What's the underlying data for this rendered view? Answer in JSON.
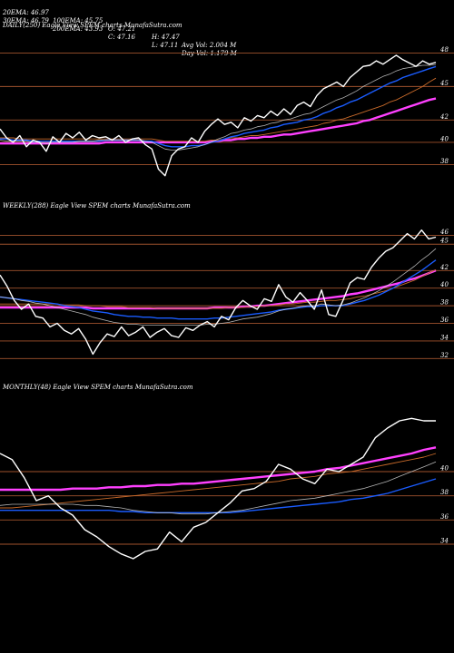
{
  "header": {
    "row1": [
      "20EMA: 46.97",
      "100EMA: 45.75",
      "O: 47.21",
      "H: 47.47",
      "Avg Vol: 2.004  M"
    ],
    "row2": [
      "30EMA: 46.79",
      "200EMA: 43.93",
      "C: 47.16",
      "L: 47.11",
      "Day Vol: 1.179 M"
    ]
  },
  "colors": {
    "background": "#000000",
    "price": "#ffffff",
    "ema_blue": "#1a5cff",
    "ema_magenta": "#ff40ff",
    "grid": "#a0522d"
  },
  "chart_data": [
    {
      "type": "line",
      "title": "DAILY(250) Eagle  View  SPEM charts MunafaSutra.com",
      "yticks": [
        "48",
        "45",
        "42",
        "40",
        "38"
      ],
      "ylim": [
        36.5,
        49.5
      ],
      "series": [
        {
          "role": "price",
          "values": [
            41.2,
            40.4,
            40.0,
            40.6,
            39.6,
            40.2,
            40.0,
            39.2,
            40.5,
            40.0,
            40.8,
            40.4,
            40.9,
            40.2,
            40.6,
            40.4,
            40.5,
            40.2,
            40.6,
            40.0,
            40.3,
            40.4,
            39.8,
            39.4,
            37.6,
            37.0,
            38.8,
            39.4,
            39.6,
            40.4,
            40.0,
            41.0,
            41.6,
            42.1,
            41.6,
            41.8,
            41.3,
            42.2,
            41.9,
            42.4,
            42.2,
            42.8,
            42.4,
            43.0,
            42.5,
            43.3,
            43.6,
            43.2,
            44.2,
            44.8,
            45.1,
            45.4,
            45.0,
            45.8,
            46.3,
            46.8,
            46.9,
            47.3,
            47.0,
            47.4,
            47.8,
            47.4,
            47.1,
            46.8,
            47.3,
            47.0,
            47.16
          ]
        },
        {
          "role": "ema20",
          "values": [
            40.2,
            40.1,
            40.1,
            40.1,
            40.1,
            40.0,
            40.0,
            39.9,
            40.0,
            40.0,
            40.0,
            40.0,
            40.1,
            40.1,
            40.1,
            40.2,
            40.2,
            40.2,
            40.2,
            40.2,
            40.2,
            40.2,
            40.1,
            40.0,
            39.7,
            39.4,
            39.3,
            39.3,
            39.4,
            39.5,
            39.6,
            39.8,
            40.0,
            40.3,
            40.5,
            40.8,
            40.9,
            41.1,
            41.2,
            41.4,
            41.5,
            41.7,
            41.8,
            42.0,
            42.1,
            42.3,
            42.5,
            42.6,
            42.9,
            43.2,
            43.5,
            43.8,
            44.0,
            44.3,
            44.6,
            45.0,
            45.3,
            45.6,
            45.9,
            46.1,
            46.4,
            46.6,
            46.7,
            46.8,
            46.9,
            46.9,
            46.97
          ]
        },
        {
          "role": "ema30",
          "values": [
            40.3,
            40.3,
            40.2,
            40.2,
            40.2,
            40.1,
            40.1,
            40.1,
            40.1,
            40.1,
            40.1,
            40.1,
            40.1,
            40.1,
            40.1,
            40.1,
            40.2,
            40.2,
            40.2,
            40.2,
            40.2,
            40.2,
            40.1,
            40.1,
            39.9,
            39.7,
            39.6,
            39.6,
            39.6,
            39.7,
            39.7,
            39.8,
            40.0,
            40.1,
            40.3,
            40.5,
            40.6,
            40.8,
            40.9,
            41.0,
            41.1,
            41.3,
            41.4,
            41.6,
            41.7,
            41.8,
            42.0,
            42.1,
            42.3,
            42.6,
            42.8,
            43.1,
            43.3,
            43.6,
            43.8,
            44.1,
            44.4,
            44.7,
            45.0,
            45.3,
            45.5,
            45.8,
            46.0,
            46.2,
            46.4,
            46.6,
            46.79
          ]
        },
        {
          "role": "ema100",
          "values": [
            40.4,
            40.4,
            40.4,
            40.3,
            40.3,
            40.3,
            40.3,
            40.3,
            40.3,
            40.3,
            40.3,
            40.3,
            40.3,
            40.3,
            40.3,
            40.3,
            40.3,
            40.3,
            40.3,
            40.3,
            40.3,
            40.3,
            40.3,
            40.3,
            40.2,
            40.1,
            40.1,
            40.1,
            40.1,
            40.1,
            40.1,
            40.1,
            40.2,
            40.2,
            40.3,
            40.4,
            40.4,
            40.5,
            40.6,
            40.6,
            40.7,
            40.8,
            40.9,
            41.0,
            41.1,
            41.2,
            41.3,
            41.4,
            41.5,
            41.7,
            41.8,
            42.0,
            42.1,
            42.3,
            42.5,
            42.7,
            42.9,
            43.1,
            43.3,
            43.6,
            43.8,
            44.1,
            44.4,
            44.7,
            45.0,
            45.4,
            45.75
          ]
        },
        {
          "role": "ema200",
          "values": [
            39.9,
            39.9,
            39.9,
            39.9,
            39.9,
            39.9,
            39.9,
            39.9,
            39.9,
            39.9,
            39.9,
            39.9,
            39.9,
            39.9,
            39.9,
            39.9,
            40.0,
            40.0,
            40.0,
            40.0,
            40.0,
            40.0,
            40.0,
            40.0,
            40.0,
            40.0,
            40.0,
            40.0,
            40.0,
            40.0,
            40.0,
            40.0,
            40.1,
            40.1,
            40.2,
            40.2,
            40.3,
            40.3,
            40.4,
            40.4,
            40.5,
            40.5,
            40.6,
            40.7,
            40.7,
            40.8,
            40.9,
            41.0,
            41.1,
            41.2,
            41.3,
            41.4,
            41.5,
            41.6,
            41.7,
            41.9,
            42.0,
            42.2,
            42.4,
            42.6,
            42.8,
            43.0,
            43.2,
            43.4,
            43.6,
            43.8,
            43.93
          ]
        }
      ]
    },
    {
      "type": "line",
      "title": "WEEKLY(288) Eagle  View  SPEM charts MunafaSutra.com",
      "yticks": [
        "46",
        "45",
        "42",
        "40",
        "38",
        "36",
        "34",
        "32"
      ],
      "ylim": [
        31,
        47.5
      ],
      "series": [
        {
          "role": "price",
          "values": [
            41.5,
            40.2,
            38.6,
            37.6,
            38.2,
            36.8,
            36.6,
            35.6,
            36.0,
            35.2,
            34.8,
            35.4,
            34.2,
            32.5,
            33.8,
            34.8,
            34.5,
            35.6,
            34.6,
            35.0,
            35.6,
            34.4,
            35.0,
            35.4,
            34.6,
            34.4,
            35.5,
            35.2,
            35.8,
            36.2,
            35.6,
            36.8,
            36.4,
            37.8,
            38.6,
            38.0,
            37.6,
            38.8,
            38.5,
            40.4,
            39.0,
            38.4,
            39.5,
            38.6,
            37.6,
            39.8,
            37.0,
            36.8,
            38.6,
            40.6,
            41.2,
            41.0,
            42.4,
            43.4,
            44.2,
            44.6,
            45.4,
            46.2,
            45.6,
            46.6,
            45.6,
            45.8
          ]
        },
        {
          "role": "ema20",
          "values": [
            39.0,
            38.9,
            38.8,
            38.6,
            38.5,
            38.3,
            38.2,
            38.0,
            37.8,
            37.6,
            37.4,
            37.2,
            37.0,
            36.7,
            36.5,
            36.3,
            36.1,
            36.0,
            35.9,
            35.9,
            35.8,
            35.8,
            35.8,
            35.8,
            35.8,
            35.8,
            35.8,
            35.8,
            35.8,
            35.9,
            35.9,
            36.0,
            36.1,
            36.3,
            36.5,
            36.6,
            36.7,
            36.9,
            37.1,
            37.4,
            37.6,
            37.7,
            37.9,
            38.0,
            38.0,
            38.2,
            38.1,
            38.0,
            38.1,
            38.3,
            38.6,
            38.9,
            39.3,
            39.7,
            40.2,
            40.7,
            41.3,
            41.9,
            42.5,
            43.2,
            43.8,
            44.5
          ]
        },
        {
          "role": "ema30",
          "values": [
            39.0,
            38.9,
            38.8,
            38.7,
            38.6,
            38.5,
            38.4,
            38.3,
            38.2,
            38.0,
            37.9,
            37.8,
            37.6,
            37.4,
            37.3,
            37.2,
            37.0,
            36.9,
            36.8,
            36.8,
            36.7,
            36.7,
            36.6,
            36.6,
            36.6,
            36.5,
            36.5,
            36.5,
            36.5,
            36.5,
            36.6,
            36.6,
            36.7,
            36.8,
            36.9,
            37.0,
            37.1,
            37.2,
            37.3,
            37.5,
            37.6,
            37.7,
            37.8,
            37.9,
            37.9,
            38.0,
            38.0,
            38.0,
            38.0,
            38.2,
            38.4,
            38.6,
            38.9,
            39.2,
            39.6,
            40.0,
            40.5,
            41.0,
            41.5,
            42.0,
            42.6,
            43.2
          ]
        },
        {
          "role": "ema100",
          "values": [
            38.2,
            38.2,
            38.2,
            38.2,
            38.2,
            38.2,
            38.2,
            38.2,
            38.2,
            38.1,
            38.1,
            38.1,
            38.0,
            38.0,
            38.0,
            37.9,
            37.9,
            37.9,
            37.8,
            37.8,
            37.8,
            37.8,
            37.7,
            37.7,
            37.7,
            37.7,
            37.7,
            37.7,
            37.7,
            37.7,
            37.7,
            37.7,
            37.8,
            37.8,
            37.8,
            37.9,
            37.9,
            38.0,
            38.0,
            38.1,
            38.2,
            38.2,
            38.3,
            38.4,
            38.4,
            38.5,
            38.6,
            38.6,
            38.7,
            38.8,
            39.0,
            39.1,
            39.3,
            39.5,
            39.7,
            40.0,
            40.3,
            40.6,
            40.9,
            41.3,
            41.7,
            42.1
          ]
        },
        {
          "role": "ema200",
          "values": [
            37.8,
            37.8,
            37.8,
            37.8,
            37.8,
            37.8,
            37.8,
            37.8,
            37.8,
            37.8,
            37.8,
            37.8,
            37.8,
            37.7,
            37.7,
            37.7,
            37.7,
            37.7,
            37.7,
            37.7,
            37.7,
            37.7,
            37.7,
            37.7,
            37.7,
            37.7,
            37.7,
            37.7,
            37.7,
            37.7,
            37.8,
            37.8,
            37.8,
            37.8,
            37.9,
            37.9,
            38.0,
            38.0,
            38.1,
            38.2,
            38.3,
            38.4,
            38.5,
            38.6,
            38.7,
            38.8,
            38.9,
            39.0,
            39.1,
            39.3,
            39.4,
            39.6,
            39.8,
            40.0,
            40.2,
            40.4,
            40.6,
            40.9,
            41.1,
            41.4,
            41.7,
            42.0
          ]
        }
      ]
    },
    {
      "type": "line",
      "title": "MONTHLY(48) Eagle  View  SPEM charts MunafaSutra.com",
      "yticks": [
        "40",
        "38",
        "36",
        "34"
      ],
      "ylim": [
        31,
        46
      ],
      "series": [
        {
          "role": "price",
          "values": [
            41.5,
            41.0,
            39.5,
            37.6,
            38.0,
            37.0,
            36.4,
            35.2,
            34.6,
            33.8,
            33.2,
            32.8,
            33.4,
            33.6,
            35.0,
            34.2,
            35.4,
            35.8,
            36.6,
            37.4,
            38.4,
            38.6,
            39.2,
            40.6,
            40.2,
            39.4,
            39.0,
            40.2,
            40.0,
            40.6,
            41.2,
            42.8,
            43.6,
            44.2,
            44.4,
            44.2,
            44.2
          ]
        },
        {
          "role": "ema20",
          "values": [
            37.2,
            37.3,
            37.3,
            37.3,
            37.3,
            37.3,
            37.3,
            37.2,
            37.2,
            37.1,
            37.0,
            36.8,
            36.7,
            36.6,
            36.6,
            36.5,
            36.5,
            36.5,
            36.6,
            36.7,
            36.8,
            37.0,
            37.2,
            37.4,
            37.6,
            37.7,
            37.8,
            38.0,
            38.2,
            38.4,
            38.6,
            38.9,
            39.2,
            39.6,
            40.0,
            40.4,
            40.8
          ]
        },
        {
          "role": "ema30",
          "values": [
            36.8,
            36.8,
            36.8,
            36.8,
            36.8,
            36.8,
            36.8,
            36.8,
            36.8,
            36.8,
            36.7,
            36.7,
            36.6,
            36.6,
            36.6,
            36.6,
            36.6,
            36.6,
            36.6,
            36.6,
            36.7,
            36.8,
            36.9,
            37.0,
            37.1,
            37.2,
            37.3,
            37.4,
            37.5,
            37.7,
            37.8,
            38.0,
            38.2,
            38.5,
            38.8,
            39.1,
            39.4
          ]
        },
        {
          "role": "ema100",
          "values": [
            37.0,
            37.0,
            37.1,
            37.2,
            37.3,
            37.4,
            37.5,
            37.6,
            37.7,
            37.8,
            37.9,
            38.0,
            38.1,
            38.2,
            38.3,
            38.4,
            38.5,
            38.6,
            38.7,
            38.8,
            38.9,
            39.0,
            39.1,
            39.2,
            39.4,
            39.5,
            39.6,
            39.8,
            39.9,
            40.0,
            40.2,
            40.4,
            40.6,
            40.8,
            41.0,
            41.2,
            41.5
          ]
        },
        {
          "role": "ema200",
          "values": [
            38.5,
            38.5,
            38.5,
            38.5,
            38.5,
            38.5,
            38.6,
            38.6,
            38.6,
            38.7,
            38.7,
            38.8,
            38.8,
            38.9,
            38.9,
            39.0,
            39.0,
            39.1,
            39.2,
            39.3,
            39.4,
            39.5,
            39.6,
            39.7,
            39.8,
            39.9,
            40.0,
            40.2,
            40.3,
            40.5,
            40.7,
            40.9,
            41.1,
            41.3,
            41.5,
            41.8,
            42.0
          ]
        }
      ]
    }
  ]
}
